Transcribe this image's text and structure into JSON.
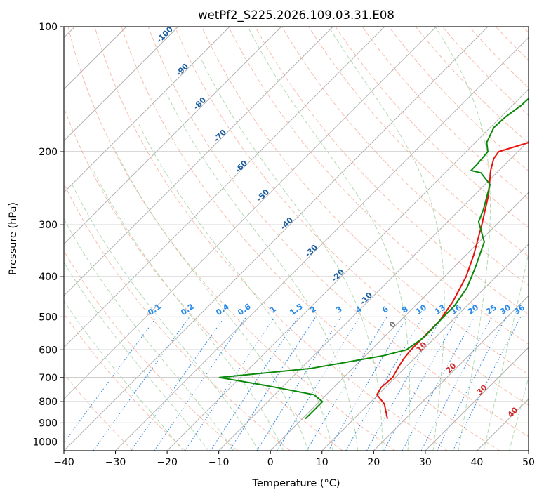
{
  "chart_data": {
    "type": "line",
    "title": "wetPf2_S225.2026.109.03.31.E08",
    "xlabel": "Temperature (°C)",
    "ylabel": "Pressure (hPa)",
    "xlim": [
      -40,
      50
    ],
    "ylim": [
      1050,
      100
    ],
    "y_scale": "log",
    "x_ticks": [
      -40,
      -30,
      -20,
      -10,
      0,
      10,
      20,
      30,
      40,
      50
    ],
    "y_ticks": [
      100,
      200,
      300,
      400,
      500,
      600,
      700,
      800,
      900,
      1000
    ],
    "skew_t": true,
    "grid": true,
    "series": [
      {
        "color": "#e8120c",
        "x": [
          16.5,
          13,
          9.8,
          9.2,
          9.5,
          8.6,
          8.0,
          7.7,
          7.6,
          6.5,
          4.2,
          1.5,
          -2.8,
          -7.2,
          -11.6,
          -13.3,
          -13.7,
          -5.3,
          5.2,
          13.4,
          14.7,
          16.5
        ],
        "y": [
          880,
          810,
          770,
          740,
          700,
          660,
          630,
          600,
          510,
          460,
          400,
          355,
          300,
          255,
          222,
          208,
          200,
          180,
          160,
          140,
          120,
          100
        ]
      },
      {
        "color": "#0a8a0a",
        "x": [
          0.6,
          0.6,
          0.6,
          -2.4,
          -14,
          -24,
          -8,
          3.5,
          6.8,
          7.8,
          7.6,
          7.6,
          6.5,
          4.2,
          1.0,
          -4.0,
          -5.5,
          -9.0,
          -13.0,
          -15.4,
          -15.4,
          -15.8,
          -17.8,
          -19.3,
          -19.1,
          -18.3,
          -18.0,
          -8.0,
          8.0
        ],
        "y": [
          880,
          840,
          800,
          770,
          730,
          700,
          665,
          620,
          600,
          560,
          500,
          470,
          425,
          380,
          330,
          295,
          275,
          240,
          225,
          222,
          215,
          200,
          190,
          175,
          165,
          155,
          140,
          120,
          100
        ]
      }
    ],
    "dry_adiabat_labels": [
      "-100",
      "-90",
      "-80",
      "-70",
      "-60",
      "-50",
      "-40",
      "-30",
      "-20",
      "-10"
    ],
    "mixing_ratio_labels": [
      "0.1",
      "0.2",
      "0.4",
      "0.6",
      "1",
      "1.5",
      "2",
      "3",
      "4",
      "6",
      "8",
      "10",
      "13",
      "16",
      "20",
      "25",
      "30",
      "36"
    ],
    "moist_adiabat_labels": [
      "0",
      "10",
      "20",
      "30",
      "40"
    ],
    "colors": {
      "temperature": "#e8120c",
      "dewpoint": "#0a8a0a",
      "isotherm_grid": "#b0b0b0",
      "dry_adiabat": "#f6a78f",
      "moist_adiabat": "#9fd19f",
      "mixing_ratio": "#3a8ee0",
      "dry_label": "#1f5fa0",
      "moist_label": "#d22a2a",
      "mixing_label": "#2a8ae8"
    }
  }
}
